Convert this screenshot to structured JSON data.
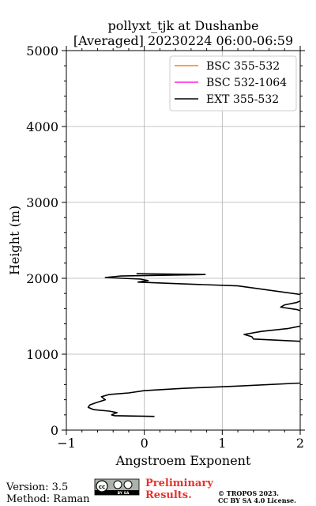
{
  "chart_data": {
    "type": "line",
    "title": "pollyxt_tjk at Dushanbe",
    "subtitle": "[Averaged] 20230224 06:00-06:59",
    "xlabel": "Angstroem Exponent",
    "ylabel": "Height (m)",
    "xlim": [
      -1,
      2
    ],
    "ylim": [
      0,
      5000
    ],
    "xticks": [
      -1,
      0,
      1,
      2
    ],
    "xtick_labels": [
      "−1",
      "0",
      "1",
      "2"
    ],
    "yticks": [
      0,
      1000,
      2000,
      3000,
      4000,
      5000
    ],
    "ytick_labels": [
      "0",
      "1000",
      "2000",
      "3000",
      "4000",
      "5000"
    ],
    "grid": true,
    "legend_position": "top-right",
    "series": [
      {
        "name": "BSC 355-532",
        "color": "#ff7f0e",
        "points": []
      },
      {
        "name": "BSC 532-1064",
        "color": "#ff1fe6",
        "points": []
      },
      {
        "name": "EXT 355-532",
        "color": "#000000",
        "points": [
          [
            0.13,
            180
          ],
          [
            -0.38,
            190
          ],
          [
            -0.42,
            200
          ],
          [
            -0.4,
            210
          ],
          [
            -0.35,
            230
          ],
          [
            -0.45,
            250
          ],
          [
            -0.65,
            270
          ],
          [
            -0.72,
            300
          ],
          [
            -0.7,
            330
          ],
          [
            -0.62,
            360
          ],
          [
            -0.5,
            400
          ],
          [
            -0.55,
            440
          ],
          [
            -0.45,
            470
          ],
          [
            -0.2,
            490
          ],
          [
            0.0,
            520
          ],
          [
            0.5,
            550
          ],
          [
            1.2,
            580
          ],
          [
            2.0,
            620
          ],
          [
            2.05,
            700
          ],
          [
            2.05,
            1100
          ],
          [
            2.0,
            1170
          ],
          [
            1.4,
            1200
          ],
          [
            1.38,
            1230
          ],
          [
            1.28,
            1260
          ],
          [
            1.5,
            1300
          ],
          [
            1.85,
            1340
          ],
          [
            2.0,
            1370
          ],
          [
            2.05,
            1400
          ],
          [
            2.05,
            1560
          ],
          [
            1.95,
            1590
          ],
          [
            1.75,
            1620
          ],
          [
            1.8,
            1650
          ],
          [
            1.95,
            1680
          ],
          [
            2.05,
            1720
          ],
          [
            2.05,
            1780
          ],
          [
            1.2,
            1900
          ],
          [
            0.4,
            1930
          ],
          [
            -0.08,
            1950
          ],
          [
            0.05,
            1970
          ],
          [
            -0.05,
            1990
          ],
          [
            -0.5,
            2010
          ],
          [
            -0.3,
            2030
          ],
          [
            0.78,
            2050
          ],
          [
            -0.1,
            2060
          ]
        ]
      }
    ]
  },
  "footer": {
    "version": "Version: 3.5",
    "method": "Method: Raman",
    "preliminary_line1": "Preliminary",
    "preliminary_line2": "Results.",
    "copyright_line1": "© TROPOS 2023.",
    "copyright_line2": "CC BY SA 4.0 License.",
    "license_logo": {
      "left": "cc",
      "right_label": "BY SA"
    }
  }
}
